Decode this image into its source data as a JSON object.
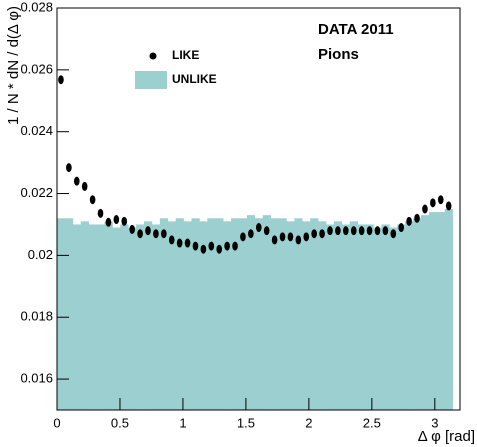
{
  "chart_data": {
    "type": "histogram",
    "annotations": [
      "DATA 2011",
      "Pions"
    ],
    "xlabel": "Δ φ [rad]",
    "ylabel": "1 / N * dN / d(Δ φ)",
    "bins": [
      0,
      0.0628,
      0.1257,
      0.1885,
      0.2513,
      0.3142,
      0.377,
      0.4398,
      0.5027,
      0.5655,
      0.6283,
      0.6912,
      0.754,
      0.8168,
      0.8796,
      0.9425,
      1.0053,
      1.0681,
      1.131,
      1.1938,
      1.2566,
      1.3195,
      1.3823,
      1.4451,
      1.508,
      1.5708,
      1.6336,
      1.6965,
      1.7593,
      1.8221,
      1.885,
      1.9478,
      2.0106,
      2.0735,
      2.1363,
      2.1991,
      2.2619,
      2.3248,
      2.3876,
      2.4504,
      2.5133,
      2.5761,
      2.6389,
      2.7018,
      2.7646,
      2.8274,
      2.8903,
      2.9531,
      3.0159,
      3.0788,
      3.1416
    ],
    "series": [
      {
        "name": "LIKE",
        "color": "#000000",
        "draw": "points",
        "values": [
          0.02568,
          0.02284,
          0.0224,
          0.02223,
          0.0218,
          0.02136,
          0.02107,
          0.02116,
          0.0211,
          0.02084,
          0.0207,
          0.0208,
          0.0207,
          0.0207,
          0.0205,
          0.0204,
          0.0204,
          0.0203,
          0.0202,
          0.0203,
          0.0202,
          0.0203,
          0.0203,
          0.0206,
          0.0207,
          0.0209,
          0.0208,
          0.0205,
          0.0206,
          0.0206,
          0.0205,
          0.0206,
          0.0207,
          0.0207,
          0.0208,
          0.0208,
          0.0208,
          0.0208,
          0.0208,
          0.0208,
          0.0208,
          0.0208,
          0.0207,
          0.0209,
          0.0211,
          0.0212,
          0.0215,
          0.0217,
          0.0218,
          0.0216
        ]
      },
      {
        "name": "UNLIKE",
        "color": "#9ccfcf",
        "draw": "bars",
        "values": [
          0.0212,
          0.0212,
          0.021,
          0.0211,
          0.021,
          0.021,
          0.0211,
          0.0209,
          0.021,
          0.0209,
          0.021,
          0.0211,
          0.021,
          0.0212,
          0.0211,
          0.0212,
          0.0211,
          0.0212,
          0.0211,
          0.0212,
          0.0212,
          0.0211,
          0.0212,
          0.0212,
          0.0213,
          0.0212,
          0.0213,
          0.0212,
          0.0212,
          0.0211,
          0.0212,
          0.0211,
          0.0212,
          0.0211,
          0.021,
          0.0211,
          0.021,
          0.0211,
          0.021,
          0.021,
          0.0209,
          0.021,
          0.0209,
          0.021,
          0.0211,
          0.0212,
          0.0213,
          0.0214,
          0.0214,
          0.0215
        ]
      }
    ],
    "xlim": [
      0,
      3.2
    ],
    "xticks": [
      0,
      0.5,
      1,
      1.5,
      2,
      2.5,
      3
    ],
    "ylim": [
      0.015,
      0.028
    ],
    "yticks": [
      0.016,
      0.018,
      0.02,
      0.022,
      0.024,
      0.026,
      0.028
    ]
  }
}
